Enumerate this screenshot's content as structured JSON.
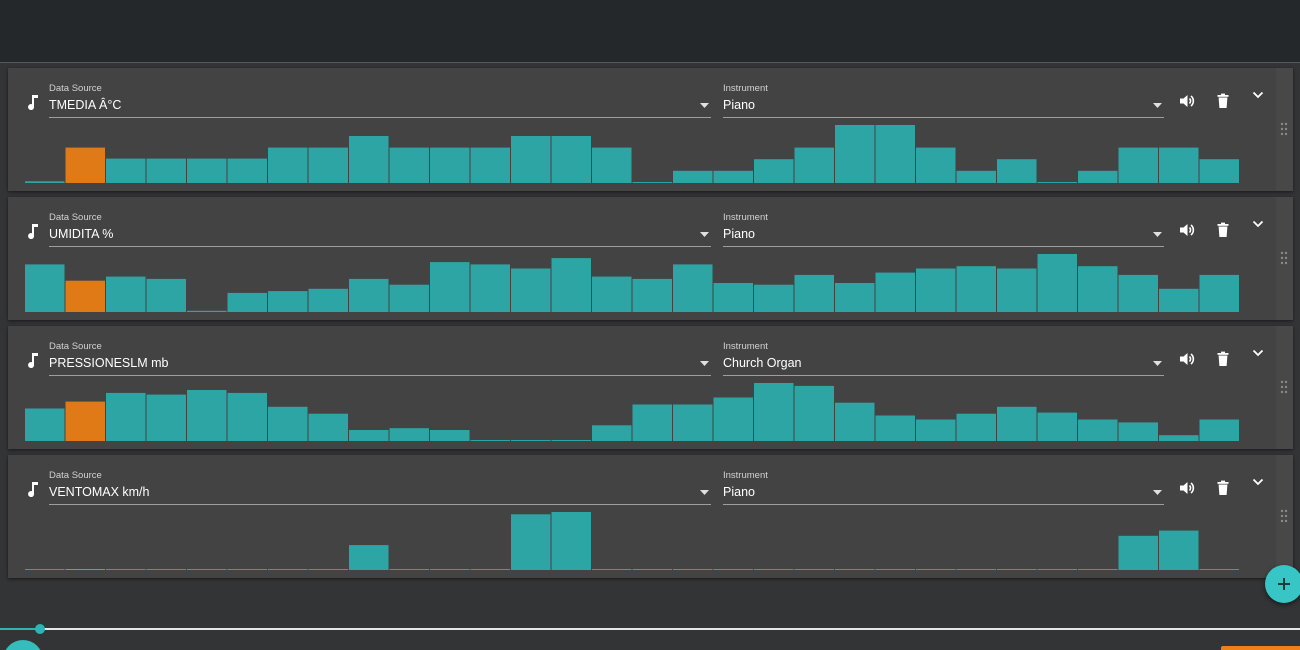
{
  "labels": {
    "data_source": "Data Source",
    "instrument": "Instrument"
  },
  "colors": {
    "bar": "#2ea5a5",
    "highlight": "#e07a16",
    "accent": "#38c5c5"
  },
  "playback": {
    "highlighted_index": 1
  },
  "tracks": [
    {
      "data_source": "TMEDIA Â°C",
      "instrument": "Piano",
      "chart_data": {
        "type": "bar",
        "values": [
          0.03,
          0.61,
          0.42,
          0.42,
          0.42,
          0.42,
          0.61,
          0.61,
          0.81,
          0.61,
          0.61,
          0.61,
          0.81,
          0.81,
          0.61,
          0.01,
          0.21,
          0.21,
          0.41,
          0.61,
          1.0,
          1.0,
          0.61,
          0.21,
          0.41,
          0.01,
          0.21,
          0.61,
          0.61,
          0.41
        ]
      }
    },
    {
      "data_source": "UMIDITA %",
      "instrument": "Piano",
      "chart_data": {
        "type": "bar",
        "values": [
          0.82,
          0.54,
          0.61,
          0.57,
          0.02,
          0.33,
          0.36,
          0.4,
          0.57,
          0.47,
          0.86,
          0.82,
          0.75,
          0.93,
          0.61,
          0.57,
          0.82,
          0.5,
          0.47,
          0.64,
          0.5,
          0.68,
          0.75,
          0.79,
          0.75,
          1.0,
          0.79,
          0.64,
          0.4,
          0.64
        ]
      }
    },
    {
      "data_source": "PRESSIONESLM mb",
      "instrument": "Church Organ",
      "chart_data": {
        "type": "bar",
        "values": [
          0.56,
          0.68,
          0.83,
          0.8,
          0.88,
          0.83,
          0.59,
          0.47,
          0.19,
          0.22,
          0.19,
          0.0,
          0.0,
          0.0,
          0.27,
          0.63,
          0.63,
          0.75,
          1.0,
          0.95,
          0.66,
          0.44,
          0.37,
          0.47,
          0.59,
          0.49,
          0.37,
          0.32,
          0.1,
          0.37
        ]
      }
    },
    {
      "data_source": "VENTOMAX km/h",
      "instrument": "Piano",
      "chart_data": {
        "type": "bar",
        "values": [
          0.0,
          0.01,
          0.0,
          0.0,
          0.0,
          0.0,
          0.0,
          0.0,
          0.43,
          0.0,
          0.0,
          0.0,
          0.96,
          1.0,
          0.0,
          0.0,
          0.0,
          0.0,
          0.0,
          0.0,
          0.0,
          0.0,
          0.0,
          0.0,
          0.0,
          0.0,
          0.0,
          0.59,
          0.68,
          0.0
        ]
      }
    }
  ]
}
